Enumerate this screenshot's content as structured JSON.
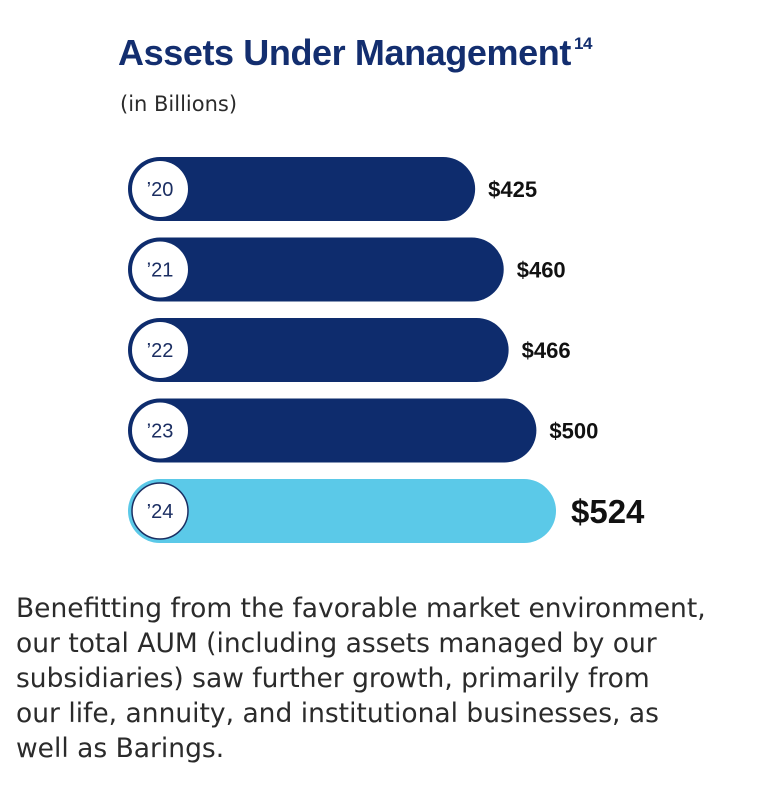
{
  "chart_data": {
    "type": "bar",
    "orientation": "horizontal",
    "title": "Assets Under Management",
    "title_footnote": "14",
    "subtitle": "(in Billions)",
    "categories": [
      "’20",
      "’21",
      "’22",
      "’23",
      "’24"
    ],
    "values": [
      425,
      460,
      466,
      500,
      524
    ],
    "value_labels": [
      "$425",
      "$460",
      "$466",
      "$500",
      "$524"
    ],
    "highlight_index": 4,
    "colors": {
      "bar": "#0e2c6d",
      "highlight_bar": "#5bc9e8",
      "year_badge": "#ffffff",
      "title": "#132e6f"
    },
    "xlim": [
      0,
      524
    ],
    "grid": false
  },
  "description_lines": [
    "Benefitting from the favorable market environment,",
    "our total AUM (including assets managed by our",
    "subsidiaries) saw further growth, primarily from",
    "our life, annuity, and institutional businesses, as",
    "well as Barings."
  ]
}
